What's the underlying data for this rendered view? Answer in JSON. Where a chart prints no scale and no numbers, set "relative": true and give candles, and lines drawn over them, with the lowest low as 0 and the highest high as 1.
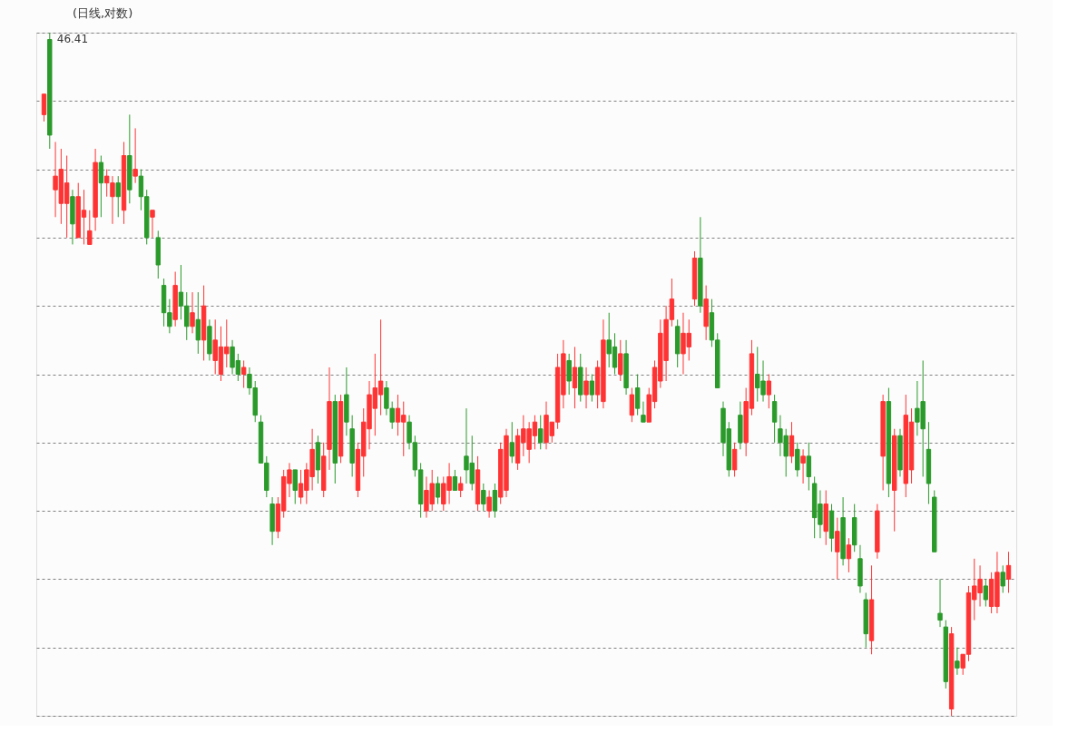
{
  "chart_data": {
    "type": "candlestick",
    "title": "(日线,对数)",
    "relative": true,
    "grid": "y",
    "annotations": [
      "46.41"
    ],
    "categories": [
      null,
      null,
      null,
      null,
      null,
      null,
      null,
      null,
      null,
      null,
      null,
      null,
      null,
      null,
      null,
      null,
      null,
      null,
      null,
      null,
      null,
      null,
      null,
      null,
      null,
      null,
      null,
      null,
      null,
      null,
      null,
      null,
      null,
      null,
      null,
      null,
      null,
      null,
      null,
      null,
      null,
      null,
      null,
      null,
      null,
      null,
      null,
      null,
      null,
      null,
      null,
      null,
      null,
      null,
      null,
      null,
      null,
      null,
      null,
      null,
      null,
      null,
      null,
      null,
      null,
      null,
      null,
      null,
      null,
      null,
      null,
      null,
      null,
      null,
      null,
      null,
      null,
      null,
      null,
      null,
      null,
      null,
      null,
      null,
      null,
      null,
      null,
      null,
      null,
      null,
      null,
      null,
      null,
      null,
      null,
      null,
      null,
      null,
      null,
      null,
      null,
      null,
      null,
      null,
      null,
      null,
      null,
      null,
      null,
      null,
      null,
      null,
      null,
      null,
      null,
      null,
      null,
      null,
      null,
      null,
      null,
      null,
      null,
      null,
      null,
      null,
      null,
      null,
      null,
      null,
      null,
      null,
      null,
      null,
      null,
      null,
      null,
      null,
      null,
      null,
      null,
      null,
      null,
      null,
      null,
      null,
      null,
      null,
      null,
      null,
      null,
      null,
      null,
      null,
      null,
      null,
      null,
      null,
      null,
      null,
      null,
      null,
      null,
      null,
      null,
      null,
      null,
      null,
      null,
      null
    ],
    "ohlc": [
      [
        0.88,
        0.91,
        0.87,
        0.91
      ],
      [
        0.99,
        1.0,
        0.83,
        0.85
      ],
      [
        0.77,
        0.84,
        0.73,
        0.79
      ],
      [
        0.75,
        0.83,
        0.72,
        0.8
      ],
      [
        0.75,
        0.82,
        0.7,
        0.78
      ],
      [
        0.76,
        0.77,
        0.69,
        0.72
      ],
      [
        0.7,
        0.78,
        0.7,
        0.76
      ],
      [
        0.73,
        0.77,
        0.69,
        0.74
      ],
      [
        0.69,
        0.74,
        0.69,
        0.71
      ],
      [
        0.73,
        0.83,
        0.71,
        0.81
      ],
      [
        0.81,
        0.82,
        0.73,
        0.78
      ],
      [
        0.78,
        0.8,
        0.76,
        0.79
      ],
      [
        0.76,
        0.79,
        0.72,
        0.78
      ],
      [
        0.78,
        0.79,
        0.73,
        0.76
      ],
      [
        0.74,
        0.84,
        0.72,
        0.82
      ],
      [
        0.82,
        0.88,
        0.75,
        0.77
      ],
      [
        0.79,
        0.86,
        0.78,
        0.8
      ],
      [
        0.79,
        0.8,
        0.74,
        0.76
      ],
      [
        0.76,
        0.77,
        0.69,
        0.7
      ],
      [
        0.73,
        0.74,
        0.7,
        0.74
      ],
      [
        0.7,
        0.71,
        0.64,
        0.66
      ],
      [
        0.63,
        0.64,
        0.57,
        0.59
      ],
      [
        0.59,
        0.61,
        0.56,
        0.57
      ],
      [
        0.58,
        0.65,
        0.57,
        0.63
      ],
      [
        0.62,
        0.66,
        0.58,
        0.6
      ],
      [
        0.6,
        0.62,
        0.55,
        0.57
      ],
      [
        0.57,
        0.62,
        0.56,
        0.59
      ],
      [
        0.58,
        0.62,
        0.53,
        0.55
      ],
      [
        0.55,
        0.63,
        0.52,
        0.6
      ],
      [
        0.57,
        0.58,
        0.52,
        0.53
      ],
      [
        0.52,
        0.58,
        0.5,
        0.55
      ],
      [
        0.5,
        0.57,
        0.49,
        0.54
      ],
      [
        0.53,
        0.58,
        0.51,
        0.54
      ],
      [
        0.54,
        0.55,
        0.5,
        0.51
      ],
      [
        0.52,
        0.53,
        0.49,
        0.5
      ],
      [
        0.5,
        0.52,
        0.48,
        0.51
      ],
      [
        0.5,
        0.51,
        0.47,
        0.48
      ],
      [
        0.48,
        0.49,
        0.43,
        0.44
      ],
      [
        0.43,
        0.44,
        0.37,
        0.37
      ],
      [
        0.37,
        0.38,
        0.32,
        0.33
      ],
      [
        0.31,
        0.32,
        0.25,
        0.27
      ],
      [
        0.27,
        0.32,
        0.26,
        0.31
      ],
      [
        0.3,
        0.36,
        0.29,
        0.35
      ],
      [
        0.34,
        0.37,
        0.32,
        0.36
      ],
      [
        0.36,
        0.36,
        0.31,
        0.33
      ],
      [
        0.32,
        0.36,
        0.31,
        0.34
      ],
      [
        0.33,
        0.37,
        0.31,
        0.36
      ],
      [
        0.35,
        0.42,
        0.33,
        0.39
      ],
      [
        0.4,
        0.41,
        0.34,
        0.36
      ],
      [
        0.33,
        0.4,
        0.32,
        0.38
      ],
      [
        0.39,
        0.51,
        0.36,
        0.46
      ],
      [
        0.46,
        0.47,
        0.34,
        0.37
      ],
      [
        0.38,
        0.47,
        0.37,
        0.46
      ],
      [
        0.47,
        0.51,
        0.41,
        0.43
      ],
      [
        0.42,
        0.44,
        0.35,
        0.37
      ],
      [
        0.33,
        0.4,
        0.32,
        0.39
      ],
      [
        0.38,
        0.45,
        0.35,
        0.43
      ],
      [
        0.42,
        0.49,
        0.39,
        0.47
      ],
      [
        0.45,
        0.53,
        0.41,
        0.48
      ],
      [
        0.47,
        0.58,
        0.44,
        0.49
      ],
      [
        0.48,
        0.49,
        0.44,
        0.45
      ],
      [
        0.45,
        0.46,
        0.42,
        0.43
      ],
      [
        0.43,
        0.47,
        0.41,
        0.45
      ],
      [
        0.43,
        0.46,
        0.38,
        0.44
      ],
      [
        0.43,
        0.44,
        0.39,
        0.4
      ],
      [
        0.4,
        0.41,
        0.35,
        0.36
      ],
      [
        0.36,
        0.37,
        0.29,
        0.31
      ],
      [
        0.3,
        0.35,
        0.29,
        0.33
      ],
      [
        0.31,
        0.36,
        0.3,
        0.34
      ],
      [
        0.34,
        0.35,
        0.31,
        0.32
      ],
      [
        0.31,
        0.35,
        0.3,
        0.34
      ],
      [
        0.33,
        0.37,
        0.31,
        0.35
      ],
      [
        0.35,
        0.36,
        0.33,
        0.33
      ],
      [
        0.33,
        0.35,
        0.32,
        0.34
      ],
      [
        0.38,
        0.45,
        0.34,
        0.36
      ],
      [
        0.37,
        0.41,
        0.33,
        0.34
      ],
      [
        0.31,
        0.38,
        0.3,
        0.36
      ],
      [
        0.33,
        0.34,
        0.3,
        0.31
      ],
      [
        0.3,
        0.33,
        0.29,
        0.32
      ],
      [
        0.33,
        0.34,
        0.29,
        0.3
      ],
      [
        0.32,
        0.4,
        0.31,
        0.39
      ],
      [
        0.33,
        0.42,
        0.32,
        0.41
      ],
      [
        0.4,
        0.43,
        0.37,
        0.38
      ],
      [
        0.37,
        0.42,
        0.36,
        0.41
      ],
      [
        0.4,
        0.44,
        0.38,
        0.42
      ],
      [
        0.39,
        0.43,
        0.37,
        0.42
      ],
      [
        0.41,
        0.44,
        0.39,
        0.43
      ],
      [
        0.42,
        0.44,
        0.39,
        0.4
      ],
      [
        0.4,
        0.46,
        0.39,
        0.44
      ],
      [
        0.41,
        0.43,
        0.4,
        0.43
      ],
      [
        0.43,
        0.53,
        0.42,
        0.51
      ],
      [
        0.47,
        0.55,
        0.45,
        0.53
      ],
      [
        0.52,
        0.53,
        0.47,
        0.49
      ],
      [
        0.48,
        0.54,
        0.45,
        0.51
      ],
      [
        0.51,
        0.53,
        0.46,
        0.47
      ],
      [
        0.47,
        0.51,
        0.45,
        0.49
      ],
      [
        0.49,
        0.5,
        0.46,
        0.47
      ],
      [
        0.47,
        0.52,
        0.45,
        0.51
      ],
      [
        0.46,
        0.58,
        0.45,
        0.55
      ],
      [
        0.55,
        0.59,
        0.51,
        0.53
      ],
      [
        0.54,
        0.56,
        0.5,
        0.51
      ],
      [
        0.5,
        0.55,
        0.49,
        0.53
      ],
      [
        0.53,
        0.55,
        0.47,
        0.48
      ],
      [
        0.44,
        0.48,
        0.43,
        0.47
      ],
      [
        0.48,
        0.5,
        0.44,
        0.45
      ],
      [
        0.44,
        0.46,
        0.43,
        0.43
      ],
      [
        0.43,
        0.48,
        0.43,
        0.47
      ],
      [
        0.46,
        0.52,
        0.45,
        0.51
      ],
      [
        0.49,
        0.58,
        0.48,
        0.56
      ],
      [
        0.52,
        0.6,
        0.49,
        0.58
      ],
      [
        0.58,
        0.64,
        0.57,
        0.61
      ],
      [
        0.57,
        0.58,
        0.51,
        0.53
      ],
      [
        0.53,
        0.59,
        0.5,
        0.56
      ],
      [
        0.54,
        0.58,
        0.52,
        0.56
      ],
      [
        0.61,
        0.68,
        0.6,
        0.67
      ],
      [
        0.67,
        0.73,
        0.59,
        0.6
      ],
      [
        0.57,
        0.63,
        0.55,
        0.61
      ],
      [
        0.59,
        0.61,
        0.54,
        0.55
      ],
      [
        0.55,
        0.56,
        0.48,
        0.48
      ],
      [
        0.45,
        0.46,
        0.38,
        0.4
      ],
      [
        0.42,
        0.43,
        0.35,
        0.36
      ],
      [
        0.36,
        0.4,
        0.35,
        0.39
      ],
      [
        0.44,
        0.46,
        0.39,
        0.4
      ],
      [
        0.4,
        0.48,
        0.38,
        0.46
      ],
      [
        0.45,
        0.55,
        0.44,
        0.53
      ],
      [
        0.5,
        0.54,
        0.46,
        0.48
      ],
      [
        0.49,
        0.52,
        0.46,
        0.47
      ],
      [
        0.47,
        0.5,
        0.45,
        0.49
      ],
      [
        0.46,
        0.47,
        0.4,
        0.43
      ],
      [
        0.42,
        0.44,
        0.38,
        0.4
      ],
      [
        0.41,
        0.42,
        0.35,
        0.38
      ],
      [
        0.38,
        0.43,
        0.37,
        0.41
      ],
      [
        0.39,
        0.4,
        0.35,
        0.36
      ],
      [
        0.37,
        0.39,
        0.34,
        0.38
      ],
      [
        0.38,
        0.4,
        0.33,
        0.35
      ],
      [
        0.34,
        0.35,
        0.26,
        0.29
      ],
      [
        0.31,
        0.33,
        0.26,
        0.28
      ],
      [
        0.27,
        0.33,
        0.25,
        0.31
      ],
      [
        0.3,
        0.31,
        0.24,
        0.26
      ],
      [
        0.24,
        0.29,
        0.2,
        0.27
      ],
      [
        0.29,
        0.32,
        0.22,
        0.23
      ],
      [
        0.23,
        0.26,
        0.21,
        0.25
      ],
      [
        0.29,
        0.31,
        0.24,
        0.25
      ],
      [
        0.23,
        0.25,
        0.18,
        0.19
      ],
      [
        0.17,
        0.18,
        0.1,
        0.12
      ],
      [
        0.11,
        0.22,
        0.09,
        0.17
      ],
      [
        0.24,
        0.31,
        0.23,
        0.3
      ],
      [
        0.38,
        0.47,
        0.33,
        0.46
      ],
      [
        0.46,
        0.48,
        0.32,
        0.34
      ],
      [
        0.33,
        0.42,
        0.27,
        0.41
      ],
      [
        0.41,
        0.42,
        0.35,
        0.36
      ],
      [
        0.34,
        0.47,
        0.32,
        0.44
      ],
      [
        0.36,
        0.45,
        0.34,
        0.43
      ],
      [
        0.45,
        0.49,
        0.41,
        0.43
      ],
      [
        0.46,
        0.52,
        0.35,
        0.42
      ],
      [
        0.39,
        0.43,
        0.31,
        0.34
      ],
      [
        0.32,
        0.33,
        0.24,
        0.24
      ],
      [
        0.15,
        0.2,
        0.13,
        0.14
      ],
      [
        0.13,
        0.14,
        0.04,
        0.05
      ],
      [
        0.01,
        0.13,
        0.0,
        0.12
      ],
      [
        0.08,
        0.1,
        0.06,
        0.07
      ],
      [
        0.07,
        0.09,
        0.06,
        0.09
      ],
      [
        0.09,
        0.19,
        0.08,
        0.18
      ],
      [
        0.17,
        0.23,
        0.14,
        0.19
      ],
      [
        0.18,
        0.22,
        0.16,
        0.2
      ],
      [
        0.19,
        0.2,
        0.16,
        0.17
      ],
      [
        0.16,
        0.21,
        0.15,
        0.2
      ],
      [
        0.16,
        0.24,
        0.15,
        0.21
      ],
      [
        0.21,
        0.22,
        0.18,
        0.19
      ],
      [
        0.2,
        0.24,
        0.18,
        0.22
      ]
    ]
  }
}
